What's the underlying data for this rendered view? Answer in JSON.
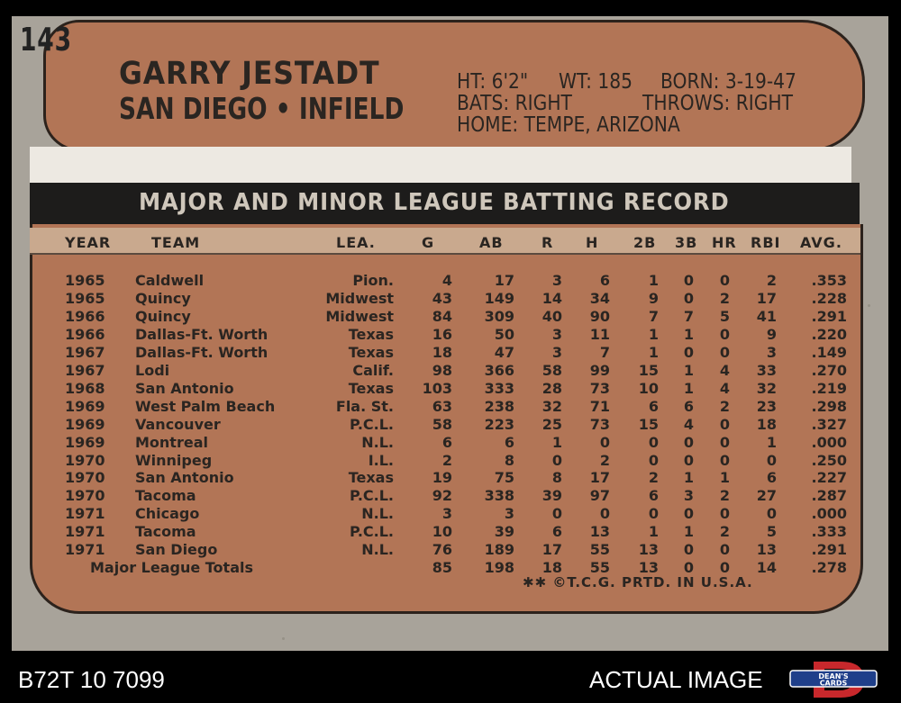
{
  "card": {
    "number": "143",
    "player_name": "GARRY JESTADT",
    "team_position": "SAN DIEGO • INFIELD",
    "vitals": {
      "ht": "HT: 6'2\"",
      "wt": "WT: 185",
      "born": "BORN: 3-19-47",
      "bats": "BATS: RIGHT",
      "throws": "THROWS: RIGHT",
      "home": "HOME: TEMPE, ARIZONA"
    },
    "record_title": "MAJOR AND MINOR LEAGUE BATTING RECORD",
    "columns": [
      "YEAR",
      "TEAM",
      "LEA.",
      "G",
      "AB",
      "R",
      "H",
      "2B",
      "3B",
      "HR",
      "RBI",
      "AVG."
    ],
    "rows": [
      [
        "1965",
        "Caldwell",
        "Pion.",
        "4",
        "17",
        "3",
        "6",
        "1",
        "0",
        "0",
        "2",
        ".353"
      ],
      [
        "1965",
        "Quincy",
        "Midwest",
        "43",
        "149",
        "14",
        "34",
        "9",
        "0",
        "2",
        "17",
        ".228"
      ],
      [
        "1966",
        "Quincy",
        "Midwest",
        "84",
        "309",
        "40",
        "90",
        "7",
        "7",
        "5",
        "41",
        ".291"
      ],
      [
        "1966",
        "Dallas-Ft. Worth",
        "Texas",
        "16",
        "50",
        "3",
        "11",
        "1",
        "1",
        "0",
        "9",
        ".220"
      ],
      [
        "1967",
        "Dallas-Ft. Worth",
        "Texas",
        "18",
        "47",
        "3",
        "7",
        "1",
        "0",
        "0",
        "3",
        ".149"
      ],
      [
        "1967",
        "Lodi",
        "Calif.",
        "98",
        "366",
        "58",
        "99",
        "15",
        "1",
        "4",
        "33",
        ".270"
      ],
      [
        "1968",
        "San Antonio",
        "Texas",
        "103",
        "333",
        "28",
        "73",
        "10",
        "1",
        "4",
        "32",
        ".219"
      ],
      [
        "1969",
        "West Palm Beach",
        "Fla. St.",
        "63",
        "238",
        "32",
        "71",
        "6",
        "6",
        "2",
        "23",
        ".298"
      ],
      [
        "1969",
        "Vancouver",
        "P.C.L.",
        "58",
        "223",
        "25",
        "73",
        "15",
        "4",
        "0",
        "18",
        ".327"
      ],
      [
        "1969",
        "Montreal",
        "N.L.",
        "6",
        "6",
        "1",
        "0",
        "0",
        "0",
        "0",
        "1",
        ".000"
      ],
      [
        "1970",
        "Winnipeg",
        "I.L.",
        "2",
        "8",
        "0",
        "2",
        "0",
        "0",
        "0",
        "0",
        ".250"
      ],
      [
        "1970",
        "San Antonio",
        "Texas",
        "19",
        "75",
        "8",
        "17",
        "2",
        "1",
        "1",
        "6",
        ".227"
      ],
      [
        "1970",
        "Tacoma",
        "P.C.L.",
        "92",
        "338",
        "39",
        "97",
        "6",
        "3",
        "2",
        "27",
        ".287"
      ],
      [
        "1971",
        "Chicago",
        "N.L.",
        "3",
        "3",
        "0",
        "0",
        "0",
        "0",
        "0",
        "0",
        ".000"
      ],
      [
        "1971",
        "Tacoma",
        "P.C.L.",
        "10",
        "39",
        "6",
        "13",
        "1",
        "1",
        "2",
        "5",
        ".333"
      ],
      [
        "1971",
        "San Diego",
        "N.L.",
        "76",
        "189",
        "17",
        "55",
        "13",
        "0",
        "0",
        "13",
        ".291"
      ]
    ],
    "totals": {
      "label": "Major League Totals",
      "values": [
        "85",
        "198",
        "18",
        "55",
        "13",
        "0",
        "0",
        "14",
        ".278"
      ]
    },
    "copyright": "✱✱ ©T.C.G. PRTD. IN U.S.A."
  },
  "footer": {
    "left": "B72T 10 7099",
    "right": "ACTUAL IMAGE",
    "logo_text_top": "DEAN'S",
    "logo_text_bottom": "CARDS"
  },
  "colors": {
    "card_stock": "#a8a39a",
    "box_fill": "#b27556",
    "title_bar": "#1d1c1b"
  }
}
